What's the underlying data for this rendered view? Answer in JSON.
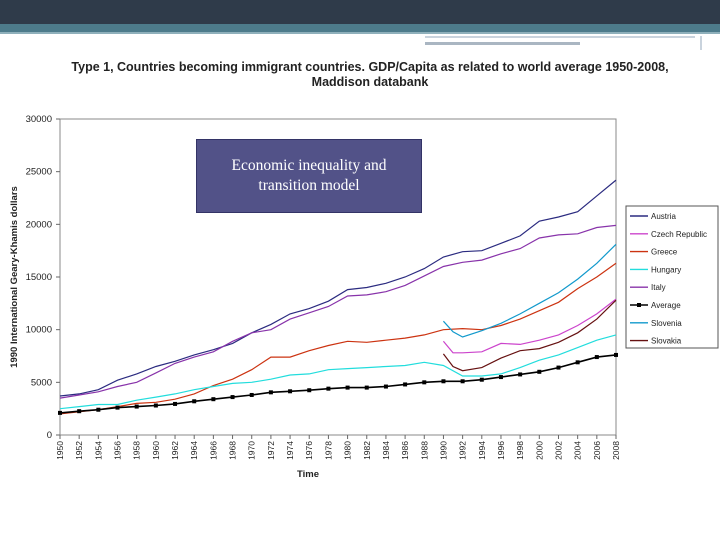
{
  "chart_data": {
    "type": "line",
    "title_line1": "Type 1, Countries becoming immigrant countries. GDP/Capita as related to world average 1950-2008,",
    "title_line2": "Maddison databank",
    "xlabel": "Time",
    "ylabel": "1990 International Geary-Khamis dollars",
    "ylim": [
      0,
      30000
    ],
    "yticks": [
      0,
      5000,
      10000,
      15000,
      20000,
      25000,
      30000
    ],
    "xticks": [
      1950,
      1952,
      1954,
      1956,
      1958,
      1960,
      1962,
      1964,
      1966,
      1968,
      1970,
      1972,
      1974,
      1976,
      1978,
      1980,
      1982,
      1984,
      1986,
      1988,
      1990,
      1992,
      1994,
      1996,
      1998,
      2000,
      2002,
      2004,
      2006,
      2008
    ],
    "legend_position": "right",
    "series": [
      {
        "name": "Austria",
        "color": "#2b2b80",
        "marker": "none",
        "points": [
          [
            1950,
            3700
          ],
          [
            1952,
            3900
          ],
          [
            1954,
            4300
          ],
          [
            1956,
            5200
          ],
          [
            1958,
            5800
          ],
          [
            1960,
            6500
          ],
          [
            1962,
            7000
          ],
          [
            1964,
            7600
          ],
          [
            1966,
            8100
          ],
          [
            1968,
            8700
          ],
          [
            1970,
            9700
          ],
          [
            1972,
            10500
          ],
          [
            1974,
            11500
          ],
          [
            1976,
            12000
          ],
          [
            1978,
            12700
          ],
          [
            1980,
            13800
          ],
          [
            1982,
            14000
          ],
          [
            1984,
            14400
          ],
          [
            1986,
            15000
          ],
          [
            1988,
            15800
          ],
          [
            1990,
            16900
          ],
          [
            1992,
            17400
          ],
          [
            1994,
            17500
          ],
          [
            1996,
            18200
          ],
          [
            1998,
            18900
          ],
          [
            2000,
            20300
          ],
          [
            2002,
            20700
          ],
          [
            2004,
            21200
          ],
          [
            2006,
            22700
          ],
          [
            2008,
            24200
          ]
        ]
      },
      {
        "name": "Czech Republic",
        "color": "#cc44cc",
        "marker": "none",
        "points": [
          [
            1990,
            8900
          ],
          [
            1991,
            7800
          ],
          [
            1992,
            7800
          ],
          [
            1994,
            7900
          ],
          [
            1996,
            8700
          ],
          [
            1998,
            8600
          ],
          [
            2000,
            9000
          ],
          [
            2002,
            9500
          ],
          [
            2004,
            10400
          ],
          [
            2006,
            11500
          ],
          [
            2008,
            12900
          ]
        ]
      },
      {
        "name": "Greece",
        "color": "#cc3311",
        "marker": "none",
        "points": [
          [
            1950,
            2000
          ],
          [
            1952,
            2200
          ],
          [
            1954,
            2400
          ],
          [
            1956,
            2700
          ],
          [
            1958,
            3000
          ],
          [
            1960,
            3100
          ],
          [
            1962,
            3400
          ],
          [
            1964,
            3900
          ],
          [
            1966,
            4700
          ],
          [
            1968,
            5300
          ],
          [
            1970,
            6200
          ],
          [
            1972,
            7400
          ],
          [
            1974,
            7400
          ],
          [
            1976,
            8000
          ],
          [
            1978,
            8500
          ],
          [
            1980,
            8900
          ],
          [
            1982,
            8800
          ],
          [
            1984,
            9000
          ],
          [
            1986,
            9200
          ],
          [
            1988,
            9500
          ],
          [
            1990,
            10000
          ],
          [
            1992,
            10100
          ],
          [
            1994,
            10000
          ],
          [
            1996,
            10400
          ],
          [
            1998,
            11000
          ],
          [
            2000,
            11800
          ],
          [
            2002,
            12600
          ],
          [
            2004,
            13900
          ],
          [
            2006,
            15000
          ],
          [
            2008,
            16300
          ]
        ]
      },
      {
        "name": "Hungary",
        "color": "#22dddd",
        "marker": "none",
        "points": [
          [
            1950,
            2500
          ],
          [
            1952,
            2700
          ],
          [
            1954,
            2900
          ],
          [
            1956,
            2900
          ],
          [
            1958,
            3300
          ],
          [
            1960,
            3600
          ],
          [
            1962,
            3900
          ],
          [
            1964,
            4300
          ],
          [
            1966,
            4600
          ],
          [
            1968,
            4900
          ],
          [
            1970,
            5000
          ],
          [
            1972,
            5300
          ],
          [
            1974,
            5700
          ],
          [
            1976,
            5800
          ],
          [
            1978,
            6200
          ],
          [
            1980,
            6300
          ],
          [
            1982,
            6400
          ],
          [
            1984,
            6500
          ],
          [
            1986,
            6600
          ],
          [
            1988,
            6900
          ],
          [
            1990,
            6600
          ],
          [
            1992,
            5600
          ],
          [
            1994,
            5600
          ],
          [
            1996,
            5800
          ],
          [
            1998,
            6400
          ],
          [
            2000,
            7100
          ],
          [
            2002,
            7600
          ],
          [
            2004,
            8300
          ],
          [
            2006,
            9000
          ],
          [
            2008,
            9500
          ]
        ]
      },
      {
        "name": "Italy",
        "color": "#8833aa",
        "marker": "none",
        "points": [
          [
            1950,
            3500
          ],
          [
            1952,
            3800
          ],
          [
            1954,
            4100
          ],
          [
            1956,
            4600
          ],
          [
            1958,
            5000
          ],
          [
            1960,
            5900
          ],
          [
            1962,
            6800
          ],
          [
            1964,
            7400
          ],
          [
            1966,
            7900
          ],
          [
            1968,
            8900
          ],
          [
            1970,
            9700
          ],
          [
            1972,
            10000
          ],
          [
            1974,
            11000
          ],
          [
            1976,
            11600
          ],
          [
            1978,
            12200
          ],
          [
            1980,
            13200
          ],
          [
            1982,
            13300
          ],
          [
            1984,
            13600
          ],
          [
            1986,
            14200
          ],
          [
            1988,
            15100
          ],
          [
            1990,
            16000
          ],
          [
            1992,
            16400
          ],
          [
            1994,
            16600
          ],
          [
            1996,
            17200
          ],
          [
            1998,
            17700
          ],
          [
            2000,
            18700
          ],
          [
            2002,
            19000
          ],
          [
            2004,
            19100
          ],
          [
            2006,
            19700
          ],
          [
            2008,
            19900
          ]
        ]
      },
      {
        "name": "Average",
        "color": "#000000",
        "marker": "square",
        "points": [
          [
            1950,
            2100
          ],
          [
            1952,
            2260
          ],
          [
            1954,
            2400
          ],
          [
            1956,
            2600
          ],
          [
            1958,
            2700
          ],
          [
            1960,
            2800
          ],
          [
            1962,
            2950
          ],
          [
            1964,
            3200
          ],
          [
            1966,
            3400
          ],
          [
            1968,
            3600
          ],
          [
            1970,
            3800
          ],
          [
            1972,
            4050
          ],
          [
            1974,
            4150
          ],
          [
            1976,
            4250
          ],
          [
            1978,
            4400
          ],
          [
            1980,
            4500
          ],
          [
            1982,
            4500
          ],
          [
            1984,
            4600
          ],
          [
            1986,
            4800
          ],
          [
            1988,
            5000
          ],
          [
            1990,
            5100
          ],
          [
            1992,
            5100
          ],
          [
            1994,
            5250
          ],
          [
            1996,
            5500
          ],
          [
            1998,
            5750
          ],
          [
            2000,
            6000
          ],
          [
            2002,
            6400
          ],
          [
            2004,
            6900
          ],
          [
            2006,
            7400
          ],
          [
            2008,
            7600
          ]
        ]
      },
      {
        "name": "Slovenia",
        "color": "#1199cc",
        "marker": "none",
        "points": [
          [
            1990,
            10800
          ],
          [
            1991,
            9800
          ],
          [
            1992,
            9300
          ],
          [
            1994,
            9900
          ],
          [
            1996,
            10600
          ],
          [
            1998,
            11500
          ],
          [
            2000,
            12500
          ],
          [
            2002,
            13500
          ],
          [
            2004,
            14800
          ],
          [
            2006,
            16300
          ],
          [
            2008,
            18100
          ]
        ]
      },
      {
        "name": "Slovakia",
        "color": "#661111",
        "marker": "none",
        "points": [
          [
            1990,
            7700
          ],
          [
            1991,
            6500
          ],
          [
            1992,
            6100
          ],
          [
            1994,
            6400
          ],
          [
            1996,
            7300
          ],
          [
            1998,
            8000
          ],
          [
            2000,
            8200
          ],
          [
            2002,
            8800
          ],
          [
            2004,
            9700
          ],
          [
            2006,
            11000
          ],
          [
            2008,
            12800
          ]
        ]
      }
    ]
  },
  "overlay": {
    "line1": "Economic inequality and",
    "line2": "transition model"
  }
}
